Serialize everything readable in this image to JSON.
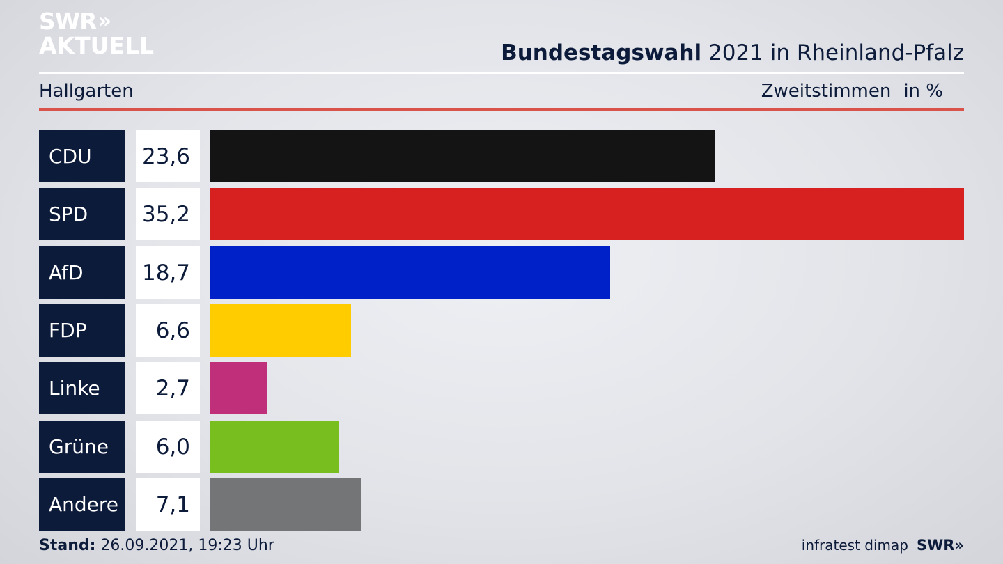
{
  "brand": {
    "logo_line1": "SWR",
    "logo_chevrons": "»",
    "logo_line2": "AKTUELL"
  },
  "header": {
    "title_bold": "Bundestagswahl",
    "title_rest": " 2021 in Rheinland-Pfalz",
    "region": "Hallgarten",
    "metric": "Zweitstimmen",
    "unit": "in %"
  },
  "chart_data": {
    "type": "bar",
    "orientation": "horizontal",
    "categories": [
      "CDU",
      "SPD",
      "AfD",
      "FDP",
      "Linke",
      "Grüne",
      "Andere"
    ],
    "values": [
      23.6,
      35.2,
      18.7,
      6.6,
      2.7,
      6.0,
      7.1
    ],
    "value_labels": [
      "23,6",
      "35,2",
      "18,7",
      "6,6",
      "2,7",
      "6,0",
      "7,1"
    ],
    "colors": [
      "#141414",
      "#d72020",
      "#0020c8",
      "#ffcc00",
      "#c0307a",
      "#78be1e",
      "#747577"
    ],
    "xlim": [
      0,
      35.2
    ]
  },
  "footer": {
    "stand_label": "Stand:",
    "stand_value": " 26.09.2021, 19:23 Uhr",
    "source": "infratest dimap",
    "source_brand": "SWR»"
  }
}
